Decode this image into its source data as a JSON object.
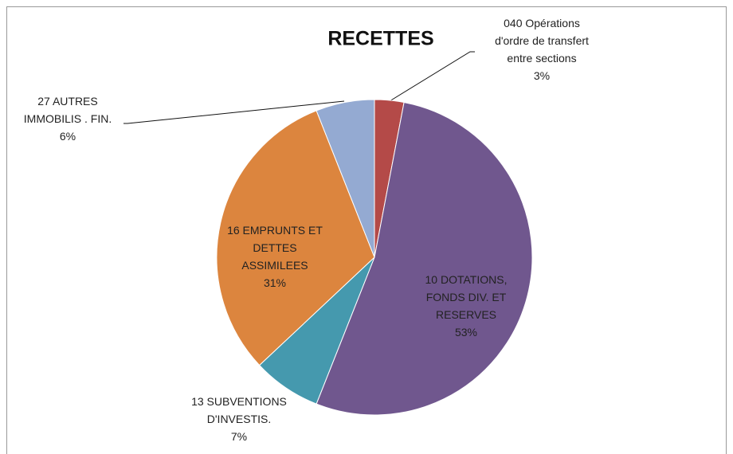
{
  "chart_data": {
    "type": "pie",
    "title": "RECETTES",
    "categories": [
      "040 Opérations d'ordre de transfert entre sections",
      "10 DOTATIONS, FONDS DIV. ET RESERVES",
      "13 SUBVENTIONS D'INVESTIS.",
      "16 EMPRUNTS ET DETTES ASSIMILEES",
      "27 AUTRES IMMOBILIS . FIN."
    ],
    "values": [
      3,
      53,
      7,
      31,
      6
    ],
    "value_labels": [
      "3%",
      "53%",
      "7%",
      "31%",
      "6%"
    ],
    "colors": [
      "#b44a48",
      "#70578e",
      "#4599ae",
      "#dc853e",
      "#94aad2"
    ]
  }
}
